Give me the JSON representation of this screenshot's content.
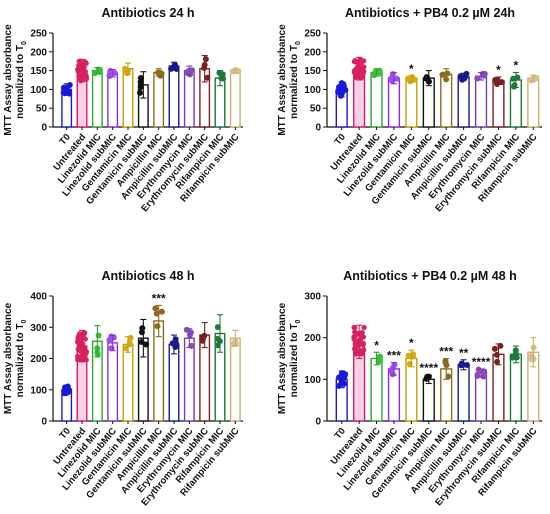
{
  "chart_data": [
    {
      "type": "bar",
      "title": "Antibiotics 24 h",
      "ylabel_line1": "MTT Assay absorbance",
      "ylabel_line2": "normalized to T",
      "ylabel_sub": "0",
      "ylim": [
        0,
        250
      ],
      "yticks": [
        "0",
        "50",
        "100",
        "150",
        "200",
        "250"
      ],
      "categories": [
        "T0",
        "Untreated",
        "Linezolid MIC",
        "Linezolid subMIC",
        "Gentamicin MIC",
        "Gentamicin subMIC",
        "Ampicillin MIC",
        "Ampicillin subMIC",
        "Erythromycin MIC",
        "Erythromycin subMIC",
        "Rifampicin MIC",
        "Rifampicin subMIC"
      ],
      "values": [
        100,
        150,
        150,
        143,
        155,
        112,
        145,
        162,
        150,
        155,
        130,
        148
      ],
      "errors": [
        15,
        30,
        8,
        10,
        15,
        35,
        10,
        10,
        12,
        35,
        20,
        5
      ],
      "annotations": [
        "",
        "",
        "",
        "",
        "",
        "",
        "",
        "",
        "",
        "",
        "",
        ""
      ]
    },
    {
      "type": "bar",
      "title": "Antibiotics + PB4 0.2 µM 24h",
      "ylabel_line1": "MTT Assay absorbance",
      "ylabel_line2": "normalized to T",
      "ylabel_sub": "0",
      "ylim": [
        0,
        250
      ],
      "yticks": [
        "0",
        "50",
        "100",
        "150",
        "200",
        "250"
      ],
      "categories": [
        "T0",
        "Untreated",
        "Linezolid MIC",
        "Linezolid subMIC",
        "Gentamicin MIC",
        "Gentamicin subMIC",
        "Ampicillin MIC",
        "Ampicillin subMIC",
        "Erythromycin MIC",
        "Erythromycin subMIC",
        "Rifampicin MIC",
        "Rifampicin subMIC"
      ],
      "values": [
        100,
        155,
        145,
        130,
        128,
        130,
        140,
        133,
        135,
        123,
        125,
        130
      ],
      "errors": [
        20,
        30,
        10,
        15,
        8,
        20,
        15,
        10,
        10,
        10,
        20,
        8
      ],
      "annotations": [
        "",
        "",
        "",
        "",
        "*",
        "",
        "",
        "",
        "",
        "*",
        "*",
        ""
      ]
    },
    {
      "type": "bar",
      "title": "Antibiotics 48 h",
      "ylabel_line1": "MTT Assay absorbance",
      "ylabel_line2": "normalized to T",
      "ylabel_sub": "0",
      "ylim": [
        0,
        400
      ],
      "yticks": [
        "0",
        "100",
        "200",
        "300",
        "400"
      ],
      "categories": [
        "T0",
        "Untreated",
        "Linezolid MIC",
        "Linezolid subMIC",
        "Gentamicin MIC",
        "Gentamicin subMIC",
        "Ampicillin MIC",
        "Ampicillin subMIC",
        "Erythromycin MIC",
        "Erythromycin subMIC",
        "Rifampicin MIC",
        "Rifampicin subMIC"
      ],
      "values": [
        100,
        240,
        255,
        250,
        245,
        265,
        320,
        245,
        265,
        275,
        280,
        265
      ],
      "errors": [
        15,
        50,
        50,
        25,
        25,
        60,
        50,
        30,
        30,
        40,
        60,
        25
      ],
      "annotations": [
        "",
        "",
        "",
        "",
        "",
        "",
        "***",
        "",
        "",
        "",
        "",
        ""
      ]
    },
    {
      "type": "bar",
      "title": "Antibiotics + PB4 0.2 µM 48 h",
      "ylabel_line1": "MTT Assay absorbance",
      "ylabel_line2": "normalized to T",
      "ylabel_sub": "0",
      "ylim": [
        0,
        300
      ],
      "yticks": [
        "0",
        "100",
        "200",
        "300"
      ],
      "categories": [
        "T0",
        "Untreated",
        "Linezolid MIC",
        "Linezolid subMIC",
        "Gentamicin MIC",
        "Gentamicin subMIC",
        "Ampicillin MIC",
        "Ampicillin subMIC",
        "Erythromycin MIC",
        "Erythromycin subMIC",
        "Rifampicin MIC",
        "Rifampicin subMIC"
      ],
      "values": [
        100,
        190,
        150,
        125,
        150,
        100,
        125,
        135,
        115,
        160,
        160,
        165
      ],
      "errors": [
        20,
        40,
        15,
        15,
        20,
        10,
        25,
        12,
        10,
        25,
        20,
        35
      ],
      "annotations": [
        "",
        "",
        "*",
        "***",
        "*",
        "****",
        "***",
        "**",
        "****",
        "",
        "",
        ""
      ]
    }
  ],
  "colors": {
    "axis": "#111111",
    "bars": [
      "#1a1ad6",
      "#d9166f",
      "#2ea62e",
      "#8a2be2",
      "#c8a000",
      "#111111",
      "#8b6b1e",
      "#1a1a8c",
      "#7a3aa8",
      "#7a2020",
      "#1f7a3a",
      "#c8b070"
    ],
    "fills": [
      "#ffffff",
      "#f6d2e4",
      "#ffffff",
      "#ffffff",
      "#ffffff",
      "#ffffff",
      "#ffffff",
      "#ffffff",
      "#ffffff",
      "#ffffff",
      "#ffffff",
      "#ffffff"
    ],
    "dots": [
      "#1a1ad6",
      "#d6245a",
      "#3bbf3b",
      "#9b4fe8",
      "#d4aa1a",
      "#111111",
      "#8b6b1e",
      "#1a1a8c",
      "#8a4ab8",
      "#7a2020",
      "#1f7a3a",
      "#d8c090"
    ]
  }
}
